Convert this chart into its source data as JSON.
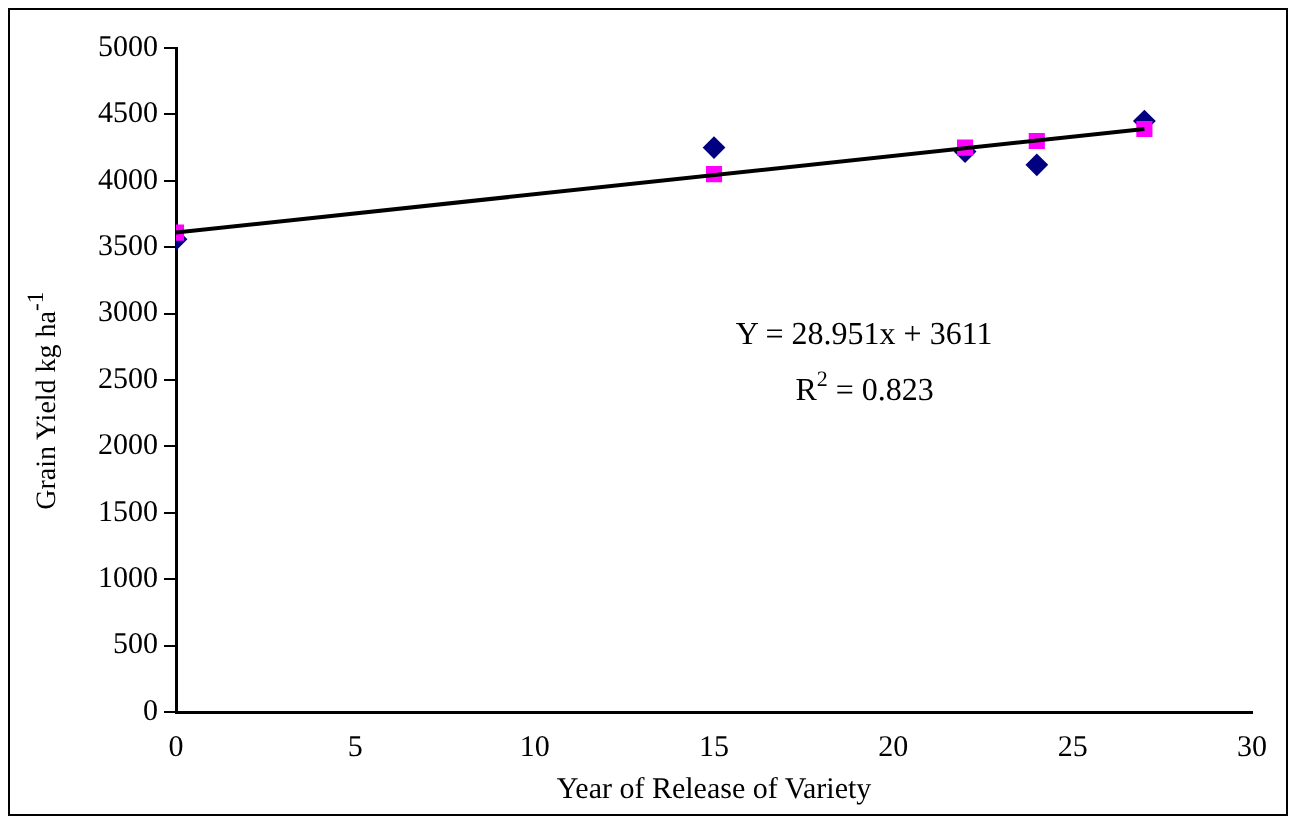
{
  "chart_data": {
    "type": "scatter",
    "xlabel": "Year of Release of Variety",
    "ylabel": "Grain Yield kg ha$^{-1}$",
    "xlim": [
      0,
      30
    ],
    "xticks": [
      0,
      5,
      10,
      15,
      20,
      25,
      30
    ],
    "ylim": [
      0,
      5000
    ],
    "yticks": [
      0,
      500,
      1000,
      1500,
      2000,
      2500,
      3000,
      3500,
      4000,
      4500,
      5000
    ],
    "grid": false,
    "legend": false,
    "series": [
      {
        "type": "scatter",
        "marker": "diamond",
        "color": "#000080",
        "x": [
          0,
          15,
          22,
          24,
          27
        ],
        "values": [
          3560,
          4250,
          4220,
          4120,
          4450
        ]
      },
      {
        "type": "scatter",
        "marker": "square",
        "color": "#ff00ff",
        "x": [
          0,
          15,
          22,
          24,
          27
        ],
        "values": [
          3610,
          4050,
          4250,
          4300,
          4390
        ]
      },
      {
        "type": "line",
        "marker": "none",
        "color": "#000000",
        "x": [
          0,
          27
        ],
        "values": [
          3610,
          4390
        ]
      }
    ],
    "annotations": [
      "Y = 28.951x + 3611",
      "R$^{2}$ = 0.823"
    ]
  }
}
